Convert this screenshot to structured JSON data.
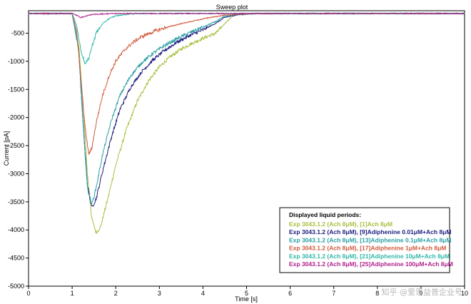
{
  "chart_data": {
    "type": "line",
    "title": "Sweep plot",
    "xlabel": "Time [s]",
    "ylabel": "Current [pA]",
    "xlim": [
      0,
      10
    ],
    "ylim": [
      -5000,
      -100
    ],
    "x_ticks": [
      0,
      1,
      2,
      3,
      4,
      5,
      6,
      7,
      8,
      9,
      10
    ],
    "y_ticks": [
      -500,
      -1000,
      -1500,
      -2000,
      -2500,
      -3000,
      -3500,
      -4000,
      -4500,
      -5000
    ],
    "legend": {
      "title": "Displayed liquid periods:",
      "position": "bottom-right"
    },
    "series": [
      {
        "name": "Exp 3043.1.2 (Ach  8μM), [1]Ach  8μM",
        "color": "#a8c040",
        "x": [
          0,
          1.0,
          1.15,
          1.25,
          1.35,
          1.45,
          1.55,
          1.65,
          1.8,
          2.0,
          2.25,
          2.5,
          2.75,
          3.0,
          3.25,
          3.5,
          3.75,
          4.0,
          4.3,
          4.5,
          4.7,
          4.9,
          5.2,
          6,
          7,
          8,
          9,
          10
        ],
        "y": [
          -150,
          -150,
          -700,
          -1800,
          -3000,
          -3800,
          -4050,
          -3950,
          -3500,
          -2850,
          -2200,
          -1700,
          -1350,
          -1100,
          -920,
          -780,
          -680,
          -590,
          -500,
          -330,
          -180,
          -160,
          -150,
          -150,
          -150,
          -150,
          -150,
          -150
        ]
      },
      {
        "name": "Exp 3043.1.2 (Ach  8μM), [9]Adiphenine  0.01μM+Ach  8μM",
        "color": "#1c1c7e",
        "x": [
          0,
          1.0,
          1.15,
          1.25,
          1.35,
          1.45,
          1.55,
          1.7,
          1.9,
          2.1,
          2.35,
          2.6,
          2.85,
          3.1,
          3.4,
          3.7,
          4.0,
          4.3,
          4.5,
          4.8,
          5.2,
          6,
          7,
          8,
          9,
          10
        ],
        "y": [
          -150,
          -150,
          -800,
          -2100,
          -3200,
          -3600,
          -3450,
          -2950,
          -2350,
          -1850,
          -1450,
          -1180,
          -980,
          -820,
          -660,
          -540,
          -440,
          -320,
          -220,
          -170,
          -150,
          -150,
          -150,
          -150,
          -150,
          -150
        ]
      },
      {
        "name": "Exp 3043.1.2 (Ach  8μM), [13]Adiphenine  0.1μM+Ach  8μM",
        "color": "#2aa0a4",
        "x": [
          0,
          1.0,
          1.15,
          1.25,
          1.35,
          1.45,
          1.55,
          1.7,
          1.9,
          2.1,
          2.35,
          2.6,
          2.85,
          3.1,
          3.4,
          3.7,
          4.0,
          4.3,
          4.5,
          4.8,
          5.2,
          6,
          7,
          8,
          9,
          10
        ],
        "y": [
          -150,
          -150,
          -800,
          -2100,
          -3250,
          -3550,
          -3250,
          -2650,
          -2050,
          -1600,
          -1250,
          -1020,
          -860,
          -730,
          -600,
          -490,
          -390,
          -290,
          -200,
          -160,
          -150,
          -150,
          -150,
          -150,
          -150,
          -150
        ]
      },
      {
        "name": "Exp 3043.1.2 (Ach  8μM), [17]Adiphenine  1μM+Ach  8μM",
        "color": "#d05a3c",
        "x": [
          0,
          1.0,
          1.1,
          1.2,
          1.3,
          1.38,
          1.45,
          1.55,
          1.7,
          1.85,
          2.0,
          2.2,
          2.4,
          2.6,
          2.9,
          3.2,
          3.5,
          3.8,
          4.1,
          4.4,
          4.8,
          5.2,
          6,
          7,
          8,
          9,
          10
        ],
        "y": [
          -150,
          -150,
          -450,
          -1300,
          -2200,
          -2650,
          -2550,
          -2100,
          -1600,
          -1250,
          -1000,
          -800,
          -660,
          -560,
          -460,
          -390,
          -330,
          -280,
          -230,
          -190,
          -160,
          -150,
          -150,
          -150,
          -150,
          -150,
          -150
        ]
      },
      {
        "name": "Exp 3043.1.2 (Ach  8μM), [21]Adiphenine  10μM+Ach  8μM",
        "color": "#30b8a8",
        "x": [
          0,
          1.0,
          1.1,
          1.2,
          1.3,
          1.38,
          1.45,
          1.55,
          1.7,
          1.85,
          2.0,
          2.3,
          2.6,
          3.0,
          4,
          5,
          6,
          7,
          8,
          9,
          10
        ],
        "y": [
          -150,
          -150,
          -350,
          -800,
          -1050,
          -950,
          -750,
          -500,
          -330,
          -240,
          -190,
          -160,
          -150,
          -150,
          -150,
          -150,
          -150,
          -150,
          -150,
          -150,
          -150
        ]
      },
      {
        "name": "Exp 3043.1.2 (Ach  8μM), [25]Adiphenine  100μM+Ach  8μM",
        "color": "#b0208c",
        "x": [
          0,
          1.0,
          1.1,
          1.2,
          1.3,
          1.4,
          1.6,
          2,
          3,
          4,
          5,
          6,
          7,
          8,
          9,
          10
        ],
        "y": [
          -150,
          -150,
          -180,
          -220,
          -200,
          -175,
          -160,
          -150,
          -150,
          -150,
          -150,
          -150,
          -150,
          -150,
          -150,
          -150
        ]
      }
    ]
  },
  "watermark": "知乎 @爱思益普企业号"
}
